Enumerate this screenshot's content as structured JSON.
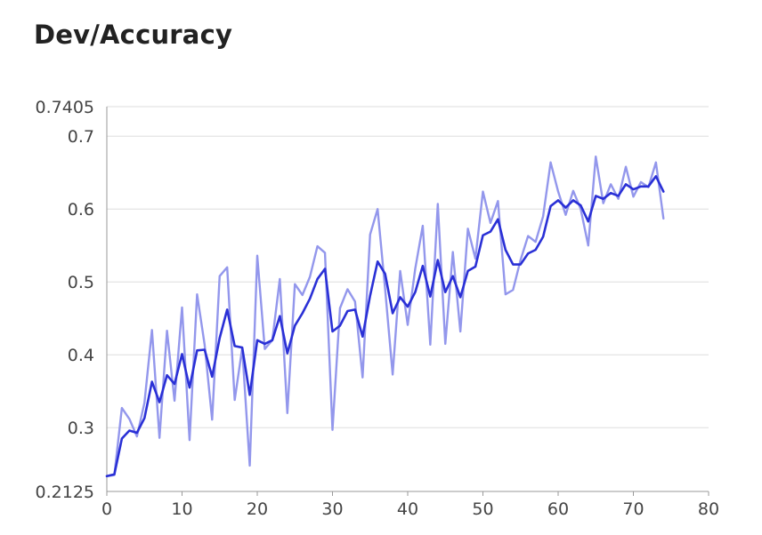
{
  "chart_data": {
    "type": "line",
    "title": "Dev/Accuracy",
    "xlabel": "",
    "ylabel": "",
    "xlim": [
      0,
      80
    ],
    "ylim": [
      0.2125,
      0.7405
    ],
    "x_ticks": [
      "0",
      "10",
      "20",
      "30",
      "40",
      "50",
      "60",
      "70",
      "80"
    ],
    "y_ticks": [
      "0.2125",
      "0.3",
      "0.4",
      "0.5",
      "0.6",
      "0.7",
      "0.7405"
    ],
    "grid": true,
    "legend": "none",
    "colors": {
      "raw": "#9397ec",
      "smoothed": "#2a30d6",
      "grid": "#dddddd",
      "axis": "#999999"
    },
    "series": [
      {
        "role": "raw",
        "x": [
          0,
          1,
          2,
          3,
          4,
          5,
          6,
          7,
          8,
          9,
          10,
          11,
          12,
          13,
          14,
          15,
          16,
          17,
          18,
          19,
          20,
          21,
          22,
          23,
          24,
          25,
          26,
          27,
          28,
          29,
          30,
          31,
          32,
          33,
          34,
          35,
          36,
          37,
          38,
          39,
          40,
          41,
          42,
          43,
          44,
          45,
          46,
          47,
          48,
          49,
          50,
          51,
          52,
          53,
          54,
          55,
          56,
          57,
          58,
          59,
          60,
          61,
          62,
          63,
          64,
          65,
          66,
          67,
          68,
          69,
          70,
          71,
          72,
          73,
          74
        ],
        "values": [
          0.2335,
          0.235,
          0.327,
          0.312,
          0.288,
          0.334,
          0.434,
          0.286,
          0.433,
          0.337,
          0.465,
          0.283,
          0.483,
          0.414,
          0.311,
          0.508,
          0.52,
          0.338,
          0.409,
          0.248,
          0.536,
          0.408,
          0.42,
          0.504,
          0.32,
          0.497,
          0.482,
          0.507,
          0.549,
          0.54,
          0.297,
          0.464,
          0.49,
          0.473,
          0.369,
          0.565,
          0.6,
          0.49,
          0.373,
          0.515,
          0.441,
          0.518,
          0.577,
          0.414,
          0.607,
          0.415,
          0.541,
          0.432,
          0.573,
          0.532,
          0.624,
          0.581,
          0.611,
          0.483,
          0.489,
          0.53,
          0.563,
          0.555,
          0.59,
          0.664,
          0.624,
          0.592,
          0.625,
          0.6,
          0.55,
          0.672,
          0.608,
          0.634,
          0.614,
          0.658,
          0.617,
          0.637,
          0.63,
          0.664,
          0.587
        ]
      },
      {
        "role": "smoothed",
        "x": [
          0,
          1,
          2,
          3,
          4,
          5,
          6,
          7,
          8,
          9,
          10,
          11,
          12,
          13,
          14,
          15,
          16,
          17,
          18,
          19,
          20,
          21,
          22,
          23,
          24,
          25,
          26,
          27,
          28,
          29,
          30,
          31,
          32,
          33,
          34,
          35,
          36,
          37,
          38,
          39,
          40,
          41,
          42,
          43,
          44,
          45,
          46,
          47,
          48,
          49,
          50,
          51,
          52,
          53,
          54,
          55,
          56,
          57,
          58,
          59,
          60,
          61,
          62,
          63,
          64,
          65,
          66,
          67,
          68,
          69,
          70,
          71,
          72,
          73,
          74
        ],
        "values": [
          0.2335,
          0.236,
          0.285,
          0.296,
          0.293,
          0.313,
          0.363,
          0.335,
          0.372,
          0.36,
          0.401,
          0.355,
          0.406,
          0.407,
          0.37,
          0.423,
          0.462,
          0.412,
          0.41,
          0.345,
          0.42,
          0.415,
          0.42,
          0.453,
          0.402,
          0.44,
          0.457,
          0.477,
          0.504,
          0.518,
          0.432,
          0.44,
          0.46,
          0.462,
          0.425,
          0.481,
          0.528,
          0.511,
          0.457,
          0.479,
          0.466,
          0.486,
          0.522,
          0.48,
          0.53,
          0.486,
          0.508,
          0.479,
          0.515,
          0.521,
          0.564,
          0.569,
          0.586,
          0.544,
          0.524,
          0.524,
          0.539,
          0.544,
          0.562,
          0.604,
          0.612,
          0.602,
          0.612,
          0.605,
          0.583,
          0.618,
          0.614,
          0.622,
          0.618,
          0.634,
          0.627,
          0.631,
          0.631,
          0.645,
          0.624
        ]
      }
    ]
  }
}
